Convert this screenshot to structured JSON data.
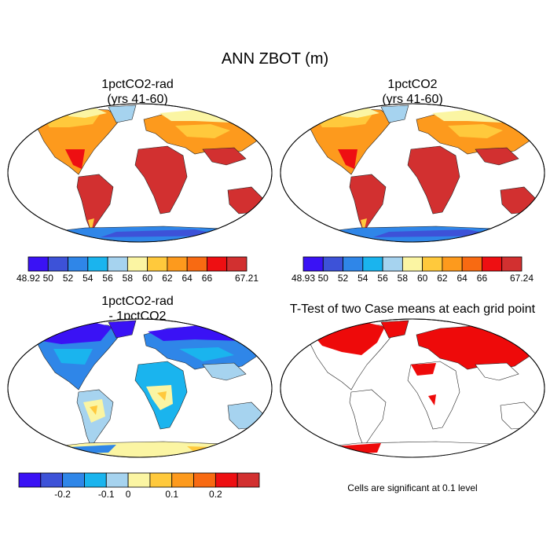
{
  "figure": {
    "title": "ANN ZBOT (m)"
  },
  "panels": [
    {
      "id": "1pctCO2-rad",
      "title_line1": "1pctCO2-rad",
      "title_line2": "(yrs 41-60)",
      "colorbar": {
        "labels": [
          "48.92",
          "50",
          "52",
          "54",
          "56",
          "58",
          "60",
          "62",
          "64",
          "66",
          "67.21"
        ],
        "colors": [
          "#3a12f5",
          "#3d52d8",
          "#2f86e8",
          "#1ab4ee",
          "#a6d3ef",
          "#fbf5a3",
          "#ffc93c",
          "#fd9a1d",
          "#f86a12",
          "#ee0f12",
          "#d23030"
        ]
      }
    },
    {
      "id": "1pctCO2",
      "title_line1": "1pctCO2",
      "title_line2": "(yrs 41-60)",
      "colorbar": {
        "labels": [
          "48.93",
          "50",
          "52",
          "54",
          "56",
          "58",
          "60",
          "62",
          "64",
          "66",
          "67.24"
        ],
        "colors": [
          "#3a12f5",
          "#3d52d8",
          "#2f86e8",
          "#1ab4ee",
          "#a6d3ef",
          "#fbf5a3",
          "#ffc93c",
          "#fd9a1d",
          "#f86a12",
          "#ee0f12",
          "#d23030"
        ]
      }
    },
    {
      "id": "difference",
      "title_line1": "1pctCO2-rad",
      "title_line2": "- 1pctCO2",
      "colorbar": {
        "labels": [
          "-0.2",
          "-0.1",
          "0",
          "0.1",
          "0.2"
        ],
        "colors": [
          "#3a12f5",
          "#3d52d8",
          "#2f86e8",
          "#1ab4ee",
          "#a6d3ef",
          "#fbf5a3",
          "#ffc93c",
          "#fd9a1d",
          "#f86a12",
          "#ee0f12",
          "#d23030"
        ]
      }
    },
    {
      "id": "ttest",
      "title_line1": "T-Test of two Case means at each grid point",
      "note": "Cells are significant at 0.1 level",
      "significant_color": "#ee0a0a"
    }
  ]
}
